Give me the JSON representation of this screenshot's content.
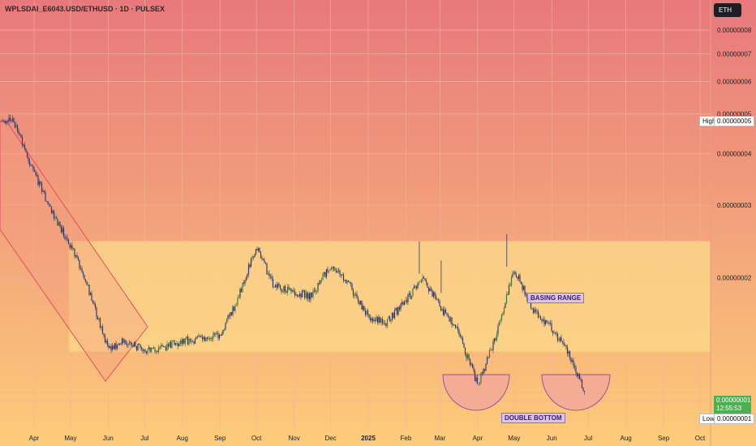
{
  "title": "WPLSDAI_E6043.USD/ETHUSD · 1D · PULSEX",
  "currency": "ETH",
  "colors": {
    "bg_top": "#e8787c",
    "bg_bottom": "#fdcc7a",
    "candle": "#2d3a6e",
    "candle_up": "#3e7a3a",
    "channel": "#e05060",
    "range_fill": "#fcd98a",
    "range_edge": "#f5c96a",
    "bowl_fill": "#f2a2a0",
    "bowl_edge": "#9b4fa0",
    "grid": "#f3b39a"
  },
  "y_axis": {
    "ticks": [
      "0.00000008",
      "0.00000007",
      "0.00000006",
      "0.00000005",
      "0.00000004",
      "0.00000003",
      "0.00000002",
      "0.00000001"
    ],
    "scale": "log"
  },
  "x_axis": {
    "ticks": [
      "Apr",
      "May",
      "Jun",
      "Jul",
      "Aug",
      "Sep",
      "Oct",
      "Nov",
      "Dec",
      "2025",
      "Feb",
      "Mar",
      "Apr",
      "May",
      "Jun",
      "Jul",
      "Aug",
      "Sep",
      "Oct"
    ]
  },
  "high": {
    "label": "High",
    "value": "0.00000005"
  },
  "low": {
    "label": "Low",
    "value": "0.00000001"
  },
  "current": {
    "price": "0.00000001",
    "countdown": "12:55:53"
  },
  "annotations": {
    "basing_range": "BASING RANGE",
    "double_bottom": "DOUBLE BOTTOM"
  },
  "chart_data": {
    "type": "line",
    "series": [
      {
        "x": [
          "Mar 15 2024",
          "Apr 1 2024",
          "Apr 15 2024",
          "May 1 2024",
          "May 15 2024",
          "Jun 1 2024",
          "Jun 15 2024",
          "Jul 1 2024",
          "Jul 15 2024",
          "Aug 1 2024",
          "Aug 15 2024",
          "Sep 1 2024",
          "Sep 15 2024",
          "Oct 1 2024",
          "Oct 15 2024",
          "Nov 1 2024",
          "Nov 15 2024",
          "Dec 1 2024",
          "Dec 15 2024",
          "Jan 1 2025",
          "Jan 15 2025",
          "Feb 1 2025",
          "Feb 15 2025",
          "Mar 1 2025",
          "Mar 15 2025",
          "Apr 1 2025",
          "Apr 15 2025",
          "May 1 2025",
          "May 15 2025",
          "Jun 1 2025",
          "Jun 15 2025",
          "Jun 28 2025"
        ],
        "values": [
          4.8e-08,
          3.6e-08,
          2.9e-08,
          2.4e-08,
          1.9e-08,
          1.35e-08,
          1.4e-08,
          1.33e-08,
          1.35e-08,
          1.4e-08,
          1.42e-08,
          1.45e-08,
          1.75e-08,
          2.4e-08,
          1.9e-08,
          1.85e-08,
          1.8e-08,
          2.15e-08,
          1.95e-08,
          1.6e-08,
          1.55e-08,
          1.75e-08,
          2e-08,
          1.7e-08,
          1.5e-08,
          1.1e-08,
          1.4e-08,
          2.1e-08,
          1.7e-08,
          1.5e-08,
          1.3e-08,
          1.05e-08
        ]
      }
    ],
    "basing_range": {
      "from": "May 1 2024",
      "to": "Oct 1 2025",
      "low": 1.32e-08,
      "high": 2.45e-08
    },
    "xlabel": "",
    "ylabel": "",
    "grid": true
  }
}
